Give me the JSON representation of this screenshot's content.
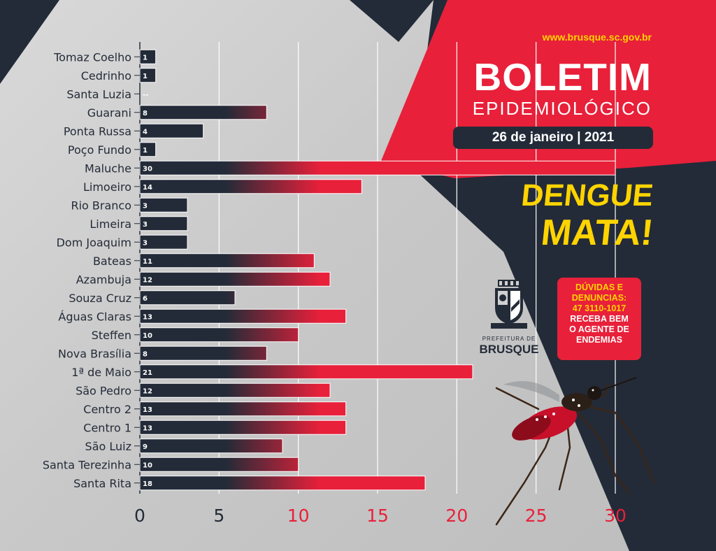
{
  "header": {
    "url": "www.brusque.sc.gov.br",
    "title": "BOLETIM",
    "subtitle": "EPIDEMIOLÓGICO",
    "date": "26 de janeiro | 2021"
  },
  "slogan": {
    "line1": "DENGUE",
    "line2": "MATA!"
  },
  "contact": {
    "question": "DÚVIDAS E DENUNCIAS:",
    "phone": "47 3110-1017",
    "message_line1": "RECEBA BEM",
    "message_line2": "O AGENTE DE",
    "message_line3": "ENDEMIAS"
  },
  "logo": {
    "small": "PREFEITURA DE",
    "big": "BRUSQUE",
    "icon": "city-crest-icon"
  },
  "illustration": {
    "icon": "mosquito-icon"
  },
  "colors": {
    "navy": "#232b38",
    "red": "#e8203a",
    "yellow": "#ffd400",
    "background": "#d0d0d0"
  },
  "chart_data": {
    "type": "bar",
    "orientation": "horizontal",
    "categories": [
      "Tomaz Coelho",
      "Cedrinho",
      "Santa Luzia",
      "Guarani",
      "Ponta Russa",
      "Poço Fundo",
      "Maluche",
      "Limoeiro",
      "Rio Branco",
      "Limeira",
      "Dom Joaquim",
      "Bateas",
      "Azambuja",
      "Souza Cruz",
      "Águas Claras",
      "Steffen",
      "Nova Brasília",
      "1ª de Maio",
      "São Pedro",
      "Centro 2",
      "Centro 1",
      "São Luiz",
      "Santa Terezinha",
      "Santa Rita"
    ],
    "values": [
      1,
      1,
      0,
      8,
      4,
      1,
      30,
      14,
      3,
      3,
      3,
      11,
      12,
      6,
      13,
      10,
      8,
      21,
      12,
      13,
      13,
      9,
      10,
      18
    ],
    "value_labels": [
      "1",
      "1",
      "--",
      "8",
      "4",
      "1",
      "30",
      "14",
      "3",
      "3",
      "3",
      "11",
      "12",
      "6",
      "13",
      "10",
      "8",
      "21",
      "12",
      "13",
      "13",
      "9",
      "10",
      "18"
    ],
    "xticks": [
      0,
      5,
      10,
      15,
      20,
      25,
      30
    ],
    "xlim": [
      0,
      30
    ],
    "grid": true
  }
}
